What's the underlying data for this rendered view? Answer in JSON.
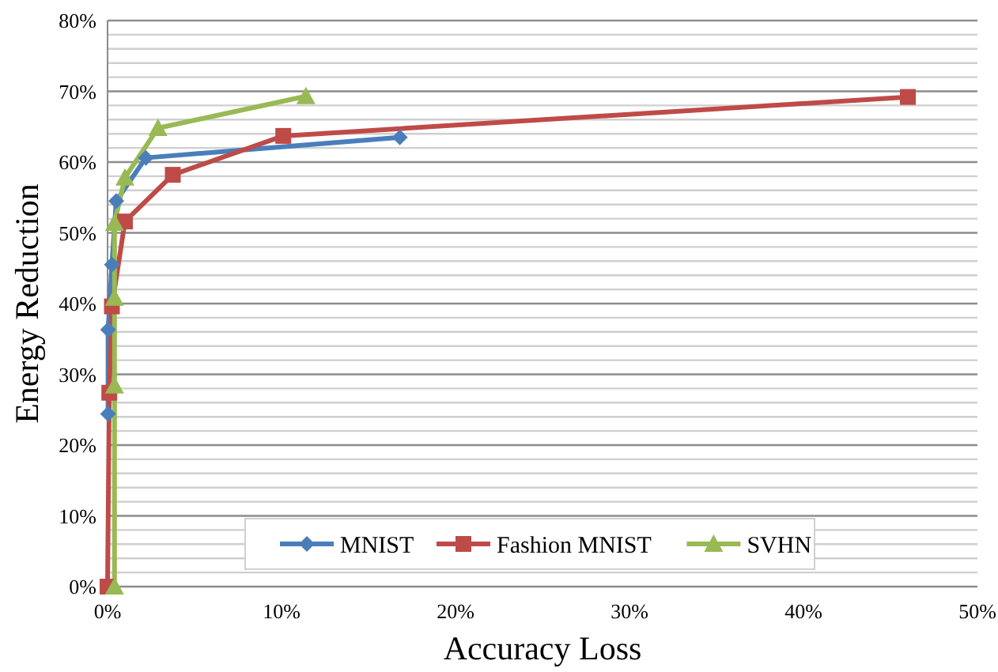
{
  "chart_data": {
    "type": "line",
    "xlabel": "Accuracy Loss",
    "ylabel": "Energy Reduction",
    "xlim": [
      0,
      50
    ],
    "xticks": [
      {
        "value": 0,
        "label": "0%"
      },
      {
        "value": 10,
        "label": "10%"
      },
      {
        "value": 20,
        "label": "20%"
      },
      {
        "value": 30,
        "label": "30%"
      },
      {
        "value": 40,
        "label": "40%"
      },
      {
        "value": 50,
        "label": "50%"
      }
    ],
    "ylim": [
      0,
      80
    ],
    "yticks": [
      {
        "value": 0,
        "label": "0%"
      },
      {
        "value": 2,
        "label": null
      },
      {
        "value": 4,
        "label": null
      },
      {
        "value": 6,
        "label": null
      },
      {
        "value": 8,
        "label": null
      },
      {
        "value": 10,
        "label": "10%"
      },
      {
        "value": 12,
        "label": null
      },
      {
        "value": 14,
        "label": null
      },
      {
        "value": 16,
        "label": null
      },
      {
        "value": 18,
        "label": null
      },
      {
        "value": 20,
        "label": "20%"
      },
      {
        "value": 22,
        "label": null
      },
      {
        "value": 24,
        "label": null
      },
      {
        "value": 26,
        "label": null
      },
      {
        "value": 28,
        "label": null
      },
      {
        "value": 30,
        "label": "30%"
      },
      {
        "value": 32,
        "label": null
      },
      {
        "value": 34,
        "label": null
      },
      {
        "value": 36,
        "label": null
      },
      {
        "value": 38,
        "label": null
      },
      {
        "value": 40,
        "label": "40%"
      },
      {
        "value": 42,
        "label": null
      },
      {
        "value": 44,
        "label": null
      },
      {
        "value": 46,
        "label": null
      },
      {
        "value": 48,
        "label": null
      },
      {
        "value": 50,
        "label": "50%"
      },
      {
        "value": 52,
        "label": null
      },
      {
        "value": 54,
        "label": null
      },
      {
        "value": 56,
        "label": null
      },
      {
        "value": 58,
        "label": null
      },
      {
        "value": 60,
        "label": "60%"
      },
      {
        "value": 62,
        "label": null
      },
      {
        "value": 64,
        "label": null
      },
      {
        "value": 66,
        "label": null
      },
      {
        "value": 68,
        "label": null
      },
      {
        "value": 70,
        "label": "70%"
      },
      {
        "value": 72,
        "label": null
      },
      {
        "value": 74,
        "label": null
      },
      {
        "value": 76,
        "label": null
      },
      {
        "value": 78,
        "label": null
      },
      {
        "value": 80,
        "label": "80%"
      }
    ],
    "grid": "y",
    "legend": "bottom",
    "line_style": "solid",
    "series": [
      {
        "name": "MNIST",
        "color": "#4a7ebb",
        "marker": "diamond",
        "x": [
          0.03,
          0.03,
          0.25,
          0.5,
          2.2,
          16.8
        ],
        "values": [
          24.4,
          36.3,
          45.5,
          54.5,
          60.6,
          63.5
        ]
      },
      {
        "name": "Fashion MNIST",
        "color": "#be4b48",
        "marker": "square",
        "x": [
          0,
          0.1,
          0.25,
          1.0,
          3.75,
          10.1,
          46.0
        ],
        "values": [
          0,
          27.4,
          39.6,
          51.6,
          58.2,
          63.7,
          69.2
        ]
      },
      {
        "name": "SVHN",
        "color": "#98b954",
        "marker": "triangle",
        "x": [
          0.4,
          0.4,
          0.4,
          0.4,
          1.0,
          2.9,
          11.4
        ],
        "values": [
          0,
          28.4,
          40.8,
          51.4,
          57.8,
          64.8,
          69.3
        ]
      }
    ]
  }
}
